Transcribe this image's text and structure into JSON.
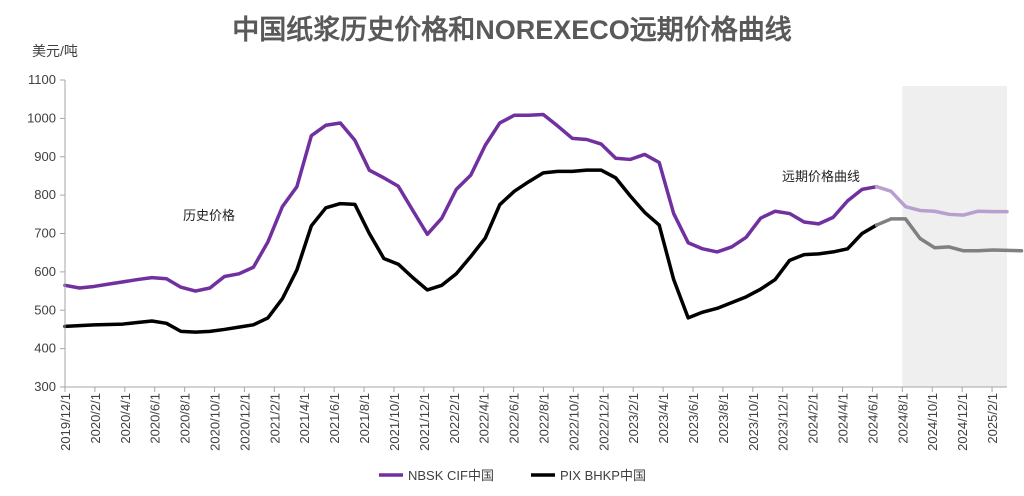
{
  "chart_data": {
    "type": "line",
    "title": "中国纸浆历史价格和NOREXECO远期价格曲线",
    "ylabel": "美元/吨",
    "ylim": [
      300,
      1100
    ],
    "yticks": [
      300,
      400,
      500,
      600,
      700,
      800,
      900,
      1000,
      1100
    ],
    "grid": false,
    "legend_position": "bottom",
    "x_range": [
      "2019/12/1",
      "2025/3/1"
    ],
    "x_ticks": [
      "2019/12/1",
      "2020/2/1",
      "2020/4/1",
      "2020/6/1",
      "2020/8/1",
      "2020/10/1",
      "2020/12/1",
      "2021/2/1",
      "2021/4/1",
      "2021/6/1",
      "2021/8/1",
      "2021/10/1",
      "2021/12/1",
      "2022/2/1",
      "2022/4/1",
      "2022/6/1",
      "2022/8/1",
      "2022/10/1",
      "2022/12/1",
      "2023/2/1",
      "2023/4/1",
      "2023/6/1",
      "2023/8/1",
      "2023/10/1",
      "2023/12/1",
      "2024/2/1",
      "2024/4/1",
      "2024/6/1",
      "2024/8/1",
      "2024/10/1",
      "2024/12/1",
      "2025/2/1"
    ],
    "historical_end": "2024/8/1",
    "annotations": {
      "historical": "历史价格",
      "forward": "远期价格曲线"
    },
    "colors": {
      "nbsk": "#7030a0",
      "nbsk_forward": "#b79fd0",
      "pix": "#000000",
      "pix_forward": "#808080",
      "forward_shade": "#efefef",
      "axis": "#a6a6a6",
      "title": "#595959"
    },
    "series": [
      {
        "name": "NBSK CIF中国",
        "values": [
          565,
          558,
          562,
          568,
          574,
          580,
          585,
          582,
          560,
          550,
          558,
          588,
          595,
          612,
          678,
          770,
          822,
          955,
          982,
          988,
          943,
          865,
          845,
          823,
          760,
          698,
          740,
          815,
          852,
          930,
          988,
          1008,
          1008,
          1010,
          980,
          948,
          945,
          933,
          896,
          893,
          906,
          885,
          752,
          676,
          660,
          652,
          665,
          690,
          740,
          758,
          752,
          730,
          725,
          742,
          785,
          815,
          822,
          810,
          770,
          760,
          758,
          750,
          748,
          758,
          757,
          757
        ]
      },
      {
        "name": "PIX BHKP中国",
        "values": [
          458,
          460,
          462,
          463,
          464,
          468,
          472,
          466,
          445,
          443,
          445,
          450,
          456,
          462,
          480,
          530,
          605,
          720,
          767,
          778,
          776,
          700,
          635,
          620,
          585,
          553,
          565,
          595,
          640,
          688,
          775,
          810,
          835,
          858,
          862,
          862,
          865,
          865,
          845,
          798,
          755,
          722,
          580,
          480,
          495,
          505,
          520,
          535,
          555,
          580,
          630,
          645,
          647,
          652,
          660,
          700,
          722,
          738,
          738,
          687,
          663,
          665,
          655,
          655,
          657,
          656,
          655
        ]
      }
    ]
  },
  "legend": {
    "nbsk": "NBSK CIF中国",
    "pix": "PIX BHKP中国"
  }
}
